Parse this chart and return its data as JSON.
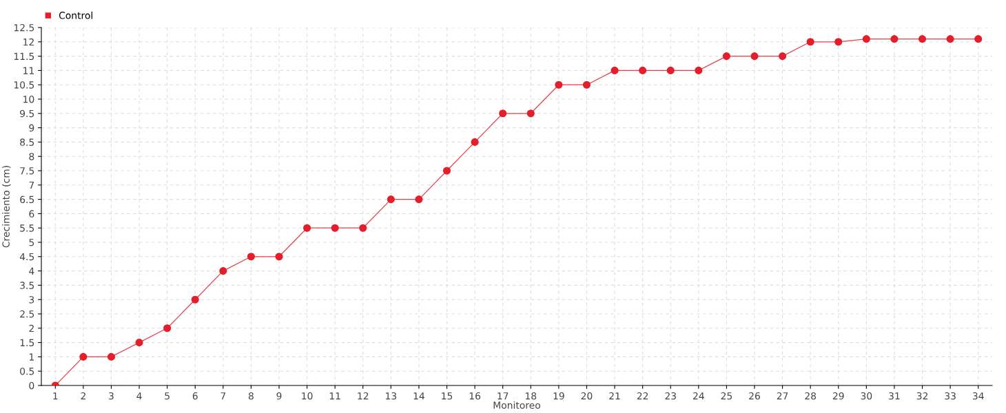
{
  "chart_data": {
    "type": "line",
    "xlabel": "Monitoreo",
    "ylabel": "Crecimiento (cm)",
    "categories": [
      "1",
      "2",
      "3",
      "4",
      "5",
      "6",
      "7",
      "8",
      "9",
      "10",
      "11",
      "12",
      "13",
      "14",
      "15",
      "16",
      "17",
      "18",
      "19",
      "20",
      "21",
      "22",
      "23",
      "24",
      "25",
      "26",
      "27",
      "28",
      "29",
      "30",
      "31",
      "32",
      "33",
      "34"
    ],
    "series": [
      {
        "name": "Control",
        "color": "#e41e2b",
        "values": [
          0,
          1,
          1,
          1.5,
          2,
          3,
          4,
          4.5,
          4.5,
          5.5,
          5.5,
          5.5,
          6.5,
          6.5,
          7.5,
          8.5,
          9.5,
          9.5,
          10.5,
          10.5,
          11,
          11,
          11,
          11,
          11.5,
          11.5,
          11.5,
          12,
          12,
          12.1,
          12.1,
          12.1,
          12.1,
          12.1
        ]
      }
    ],
    "ylim": [
      0,
      12.5
    ],
    "yticks": [
      0,
      0.5,
      1,
      1.5,
      2,
      2.5,
      3,
      3.5,
      4,
      4.5,
      5,
      5.5,
      6,
      6.5,
      7,
      7.5,
      8,
      8.5,
      9,
      9.5,
      10,
      10.5,
      11,
      11.5,
      12,
      12.5
    ],
    "grid": true,
    "legend": "top left",
    "marker": "circle",
    "line_style": "solid"
  }
}
